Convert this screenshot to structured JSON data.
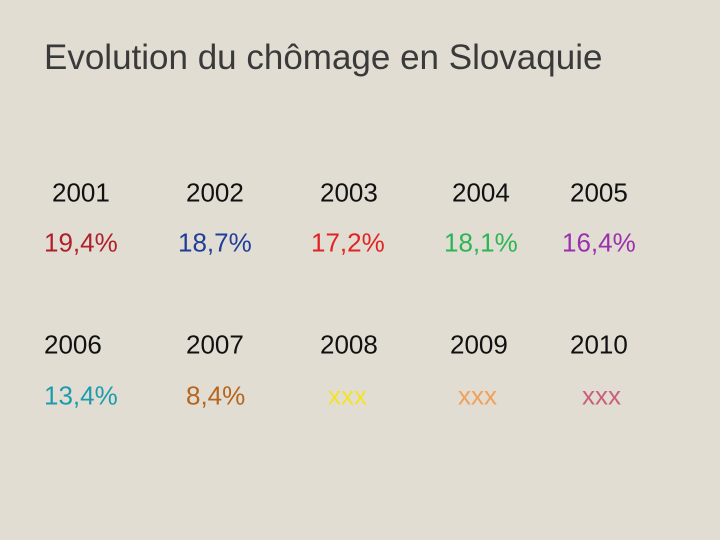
{
  "title": "Evolution du chômage en Slovaquie",
  "rows": [
    {
      "years": [
        "2001",
        "2002",
        "2003",
        "2004",
        "2005"
      ],
      "values": [
        {
          "text": "19,4%",
          "color": "#b0202a"
        },
        {
          "text": "18,7%",
          "color": "#1f3d99"
        },
        {
          "text": "17,2%",
          "color": "#e02424"
        },
        {
          "text": "18,1%",
          "color": "#2bb553"
        },
        {
          "text": "16,4%",
          "color": "#9b2fae"
        }
      ]
    },
    {
      "years": [
        "2006",
        "2007",
        "2008",
        "2009",
        "2010"
      ],
      "values": [
        {
          "text": "13,4%",
          "color": "#1d9bad"
        },
        {
          "text": "8,4%",
          "color": "#b5651d"
        },
        {
          "text": "xxx",
          "color": "#f2e32a"
        },
        {
          "text": "xxx",
          "color": "#f0a05a"
        },
        {
          "text": "xxx",
          "color": "#c8607e"
        }
      ]
    }
  ]
}
